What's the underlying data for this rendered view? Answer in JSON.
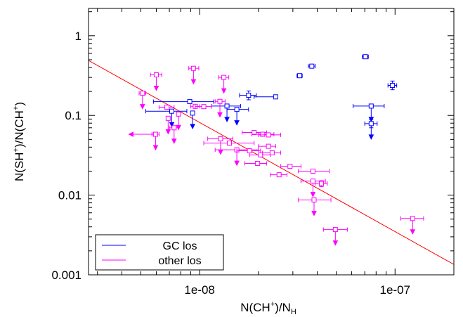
{
  "chart_data": {
    "type": "scatter",
    "xscale": "log",
    "yscale": "log",
    "xlim": [
      2.7e-09,
      2e-07
    ],
    "ylim": [
      0.001,
      2.2
    ],
    "grid": false,
    "legend_position": "bottom-left",
    "x_ticks": [
      {
        "value": 1e-08,
        "label": "1e-08"
      },
      {
        "value": 1e-07,
        "label": "1e-07"
      }
    ],
    "y_ticks": [
      {
        "value": 0.001,
        "label": "0.001"
      },
      {
        "value": 0.01,
        "label": "0.01"
      },
      {
        "value": 0.1,
        "label": "0.1"
      },
      {
        "value": 1,
        "label": "1"
      }
    ],
    "xlabel": {
      "base": "N(CH",
      "sup": "+",
      "mid": ")/N",
      "sub": "H"
    },
    "ylabel": {
      "p1": "N(SH",
      "s1": "+",
      "p2": ")/N(CH",
      "s2": "+",
      "p3": ")"
    },
    "fit_line": {
      "color": "#ff0000",
      "x": [
        2.7e-09,
        2e-07
      ],
      "y": [
        0.49,
        0.00135
      ]
    },
    "series": [
      {
        "name": "GC los",
        "color": "#0000ff",
        "points": [
          {
            "x": 8.9e-09,
            "y": 0.149,
            "xerr": [
              5.8e-09,
              1.18e-08
            ]
          },
          {
            "x": 7.2e-09,
            "y": 0.113,
            "xerr": [
              5.3e-09,
              8.6e-09
            ],
            "upper": true
          },
          {
            "x": 9.2e-09,
            "y": 0.107,
            "upper": true
          },
          {
            "x": 1.38e-08,
            "y": 0.131,
            "xerr": [
              1.15e-08,
              1.62e-08
            ],
            "upper": true
          },
          {
            "x": 1.55e-08,
            "y": 0.119,
            "xerr": [
              1.38e-08,
              1.78e-08
            ],
            "upper": true
          },
          {
            "x": 1.78e-08,
            "y": 0.179,
            "xerr": [
              1.6e-08,
              1.95e-08
            ],
            "yerr": [
              0.157,
              0.203
            ]
          },
          {
            "x": 2.45e-08,
            "y": 0.171,
            "xerr": [
              1.9e-08,
              2.45e-08
            ]
          },
          {
            "x": 3.25e-08,
            "y": 0.315,
            "xerr": [
              3.15e-08,
              3.35e-08
            ]
          },
          {
            "x": 3.75e-08,
            "y": 0.415,
            "xerr": [
              3.6e-08,
              3.9e-08
            ]
          },
          {
            "x": 7.05e-08,
            "y": 0.545,
            "xerr": [
              6.8e-08,
              7.3e-08
            ]
          },
          {
            "x": 9.7e-08,
            "y": 0.238,
            "xerr": [
              9.2e-08,
              1.02e-07
            ],
            "yerr": [
              0.21,
              0.27
            ]
          },
          {
            "x": 7.55e-08,
            "y": 0.131,
            "xerr": [
              6.1e-08,
              8.8e-08
            ],
            "upper": true
          },
          {
            "x": 7.55e-08,
            "y": 0.079,
            "xerr": [
              7e-08,
              8.1e-08
            ],
            "yerr": [
              0.07,
              0.089
            ],
            "upper": true
          }
        ]
      },
      {
        "name": "other los",
        "color": "#ff00ff",
        "points": [
          {
            "x": 6e-09,
            "y": 0.323,
            "xerr": [
              5.6e-09,
              6.4e-09
            ],
            "upper": true
          },
          {
            "x": 5.1e-09,
            "y": 0.19,
            "xerr": [
              4.9e-09,
              5.3e-09
            ],
            "upper": true
          },
          {
            "x": 9.3e-09,
            "y": 0.39,
            "xerr": [
              8.8e-09,
              9.9e-09
            ],
            "upper": true
          },
          {
            "x": 1.33e-08,
            "y": 0.3,
            "xerr": [
              1.25e-08,
              1.41e-08
            ],
            "upper": true
          },
          {
            "x": 6.8e-09,
            "y": 0.127,
            "xerr": [
              6.2e-09,
              7.4e-09
            ]
          },
          {
            "x": 9.5e-09,
            "y": 0.13,
            "xerr": [
              9e-09,
              1e-08
            ]
          },
          {
            "x": 1.05e-08,
            "y": 0.129,
            "xerr": [
              9.5e-09,
              1.15e-08
            ]
          },
          {
            "x": 1.27e-08,
            "y": 0.15,
            "xerr": [
              1.2e-08,
              1.35e-08
            ],
            "upper": true
          },
          {
            "x": 7.8e-09,
            "y": 0.104,
            "upper": true
          },
          {
            "x": 6.9e-09,
            "y": 0.092,
            "upper": true
          },
          {
            "x": 7.4e-09,
            "y": 0.07,
            "xerr": [
              7e-09,
              7.8e-09
            ],
            "upper": true
          },
          {
            "x": 5.95e-09,
            "y": 0.058,
            "xerr": [
              5.7e-09,
              6.2e-09
            ],
            "upper": true,
            "left": true
          },
          {
            "x": 1.28e-08,
            "y": 0.051,
            "xerr": [
              1.1e-08,
              1.48e-08
            ],
            "upper": true
          },
          {
            "x": 1.42e-08,
            "y": 0.045,
            "xerr": [
              1.05e-08,
              1.9e-08
            ]
          },
          {
            "x": 1.55e-08,
            "y": 0.037,
            "xerr": [
              1.2e-08,
              2e-08
            ],
            "upper": true
          },
          {
            "x": 1.8e-08,
            "y": 0.036,
            "xerr": [
              1.55e-08,
              2.05e-08
            ]
          },
          {
            "x": 1.9e-08,
            "y": 0.061,
            "xerr": [
              1.65e-08,
              2.2e-08
            ]
          },
          {
            "x": 2.1e-08,
            "y": 0.058,
            "xerr": [
              1.85e-08,
              2.4e-08
            ]
          },
          {
            "x": 2.25e-08,
            "y": 0.057,
            "xerr": [
              2e-08,
              2.6e-08
            ]
          },
          {
            "x": 2.05e-08,
            "y": 0.032,
            "xerr": [
              1.8e-08,
              2.3e-08
            ]
          },
          {
            "x": 1.98e-08,
            "y": 0.025,
            "xerr": [
              1.7e-08,
              2.2e-08
            ]
          },
          {
            "x": 2.25e-08,
            "y": 0.041,
            "xerr": [
              2e-08,
              2.45e-08
            ]
          },
          {
            "x": 2.35e-08,
            "y": 0.034,
            "xerr": [
              2.1e-08,
              2.6e-08
            ]
          },
          {
            "x": 2.55e-08,
            "y": 0.018,
            "xerr": [
              2.3e-08,
              2.8e-08
            ]
          },
          {
            "x": 2.9e-08,
            "y": 0.023,
            "xerr": [
              2.6e-08,
              3.3e-08
            ]
          },
          {
            "x": 3.8e-08,
            "y": 0.02,
            "xerr": [
              3.2e-08,
              4.6e-08
            ]
          },
          {
            "x": 3.8e-08,
            "y": 0.015,
            "xerr": [
              3.3e-08,
              4.4e-08
            ],
            "upper": true
          },
          {
            "x": 4.2e-08,
            "y": 0.014,
            "xerr": [
              3.9e-08,
              4.5e-08
            ],
            "yerr": [
              0.0128,
              0.0152
            ]
          },
          {
            "x": 3.85e-08,
            "y": 0.0087,
            "xerr": [
              3.2e-08,
              4.7e-08
            ],
            "upper": true
          },
          {
            "x": 4.95e-08,
            "y": 0.0037,
            "xerr": [
              4.3e-08,
              5.7e-08
            ],
            "upper": true
          },
          {
            "x": 1.23e-07,
            "y": 0.0051,
            "xerr": [
              1.07e-07,
              1.4e-07
            ],
            "upper": true
          }
        ]
      }
    ]
  }
}
